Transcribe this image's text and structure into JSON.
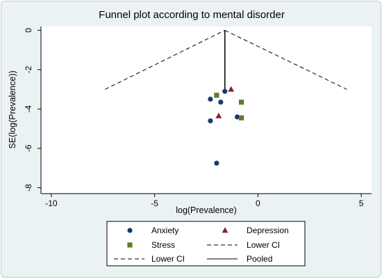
{
  "chart_data": {
    "type": "scatter",
    "title": "Funnel plot according to mental disorder",
    "xlabel": "log(Prevalence)",
    "ylabel": "SE(log(Prevalence))",
    "xlim": [
      -10.5,
      5.5
    ],
    "ylim": [
      -8.3,
      0.2
    ],
    "xticks": [
      -10,
      -5,
      0,
      5
    ],
    "yticks": [
      0,
      -2,
      -4,
      -6,
      -8
    ],
    "series": [
      {
        "name": "Anxiety",
        "marker": "circle",
        "color": "#1a3a6b",
        "points": [
          [
            -1.6,
            -3.1
          ],
          [
            -2.3,
            -3.5
          ],
          [
            -1.8,
            -3.65
          ],
          [
            -2.3,
            -4.6
          ],
          [
            -1.0,
            -4.4
          ],
          [
            -2.0,
            -6.75
          ]
        ]
      },
      {
        "name": "Depression",
        "marker": "triangle",
        "color": "#8a1e2e",
        "points": [
          [
            -1.3,
            -3.0
          ],
          [
            -1.9,
            -4.35
          ]
        ]
      },
      {
        "name": "Stress",
        "marker": "square",
        "color": "#5a7d2a",
        "points": [
          [
            -2.0,
            -3.3
          ],
          [
            -0.8,
            -3.65
          ],
          [
            -0.8,
            -4.45
          ]
        ]
      }
    ],
    "lines": [
      {
        "name": "Lower CI",
        "style": "dashed",
        "points": [
          [
            -7.4,
            -3.0
          ],
          [
            -1.6,
            0
          ]
        ]
      },
      {
        "name": "Lower CI",
        "style": "dashed",
        "points": [
          [
            -1.6,
            0
          ],
          [
            4.3,
            -3.0
          ]
        ]
      },
      {
        "name": "Pooled",
        "style": "solid",
        "points": [
          [
            -1.6,
            0
          ],
          [
            -1.6,
            -3.0
          ]
        ]
      }
    ],
    "legend": {
      "placement": "bottom",
      "entries": [
        {
          "label": "Anxiety",
          "symbol": "circle",
          "color": "#1a3a6b"
        },
        {
          "label": "Depression",
          "symbol": "triangle",
          "color": "#8a1e2e"
        },
        {
          "label": "Stress",
          "symbol": "square",
          "color": "#5a7d2a"
        },
        {
          "label": "Lower CI",
          "symbol": "dashed"
        },
        {
          "label": "Lower CI",
          "symbol": "dashed"
        },
        {
          "label": "Pooled",
          "symbol": "solid"
        }
      ]
    },
    "grid": false
  }
}
